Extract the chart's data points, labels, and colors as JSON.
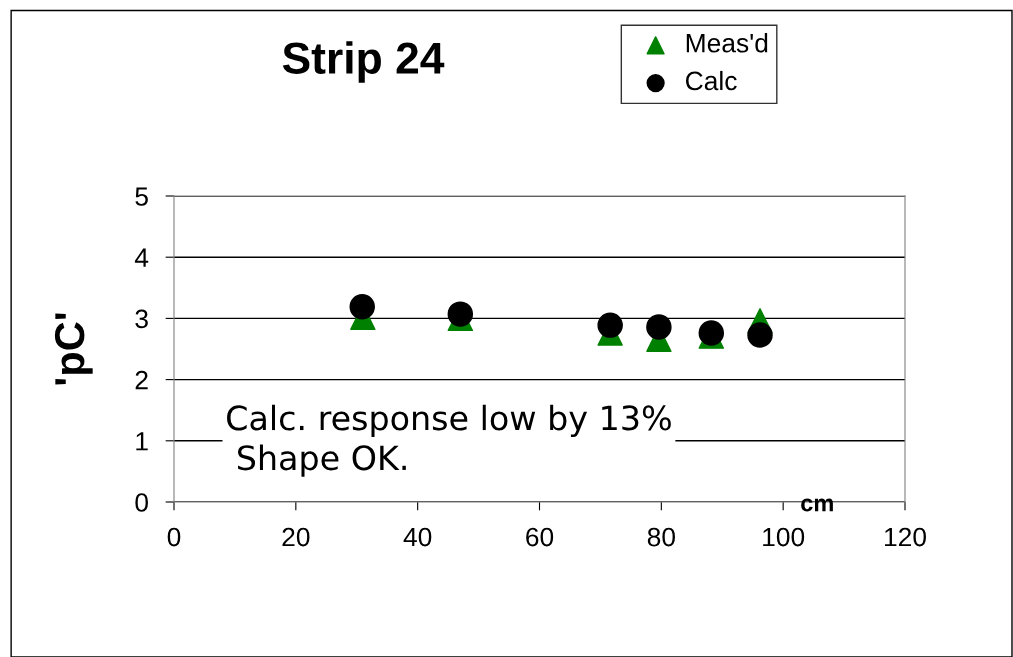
{
  "chart_data": {
    "type": "scatter",
    "title": "Strip 24",
    "xlabel": "cm",
    "ylabel": "'pC'",
    "xlim": [
      0,
      120
    ],
    "xticks": [
      0,
      20,
      40,
      60,
      80,
      100,
      120
    ],
    "ylim": [
      0,
      5
    ],
    "yticks": [
      0,
      1,
      2,
      3,
      4,
      5
    ],
    "grid": "y",
    "legend": "top right",
    "series": [
      {
        "name": "Meas'd",
        "color": "#008000",
        "marker": "triangle",
        "x": [
          31,
          47,
          71.6,
          79.6,
          88.2,
          96.2
        ],
        "values": [
          3.02,
          3.0,
          2.76,
          2.66,
          2.71,
          2.96
        ]
      },
      {
        "name": "Calc",
        "color": "#000000",
        "marker": "circle",
        "x": [
          30.9,
          47.0,
          71.6,
          79.6,
          88.2,
          96.2
        ],
        "values": [
          3.19,
          3.07,
          2.89,
          2.86,
          2.76,
          2.73
        ]
      }
    ],
    "annotations": [
      "Calc. response low by 13%\n Shape OK."
    ]
  }
}
